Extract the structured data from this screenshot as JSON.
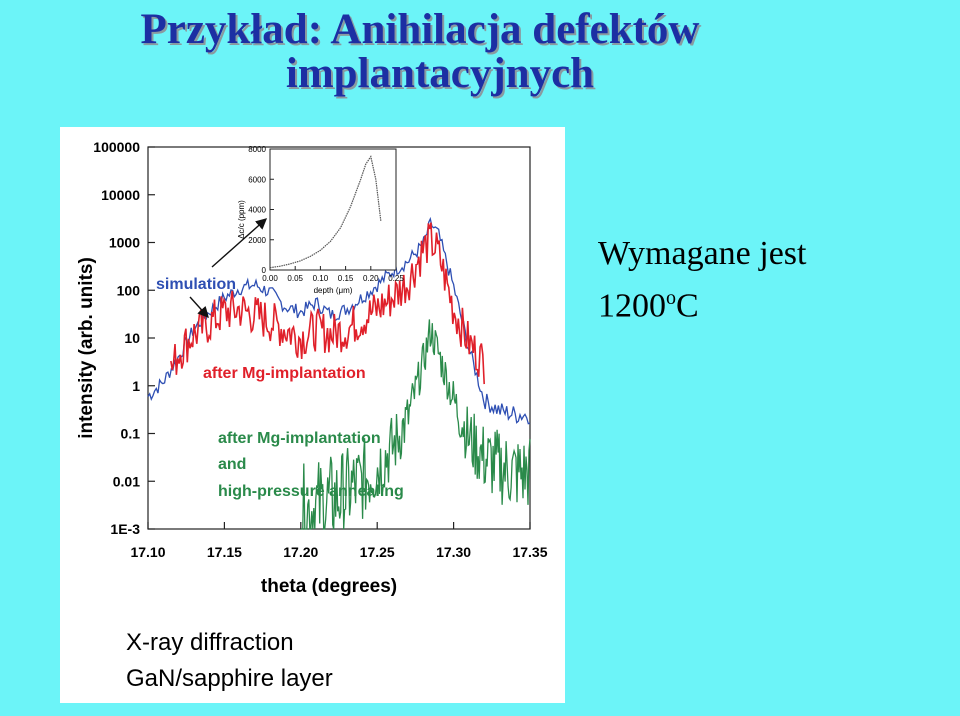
{
  "slide": {
    "title_line1": "Przykład: Anihilacja defektów",
    "title_line2": "implantacyjnych",
    "note_line1": "Wymagane jest",
    "note_value": "1200",
    "note_sup": "o",
    "note_unit": "C"
  },
  "colors": {
    "background": "#6cf4f8",
    "title": "#1c2fa3",
    "simulation": "#2e4fb3",
    "after_implantation": "#e0202a",
    "after_annealing": "#2a8a4a"
  },
  "caption": {
    "line1": "X-ray diffraction",
    "line2": "GaN/sapphire layer"
  },
  "chart_data": [
    {
      "type": "line",
      "title": "",
      "xlabel": "theta (degrees)",
      "ylabel": "intensity (arb. units)",
      "y_scale": "log",
      "xlim": [
        17.1,
        17.35
      ],
      "ylim": [
        0.001,
        100000
      ],
      "x_ticks": [
        "17.10",
        "17.15",
        "17.20",
        "17.25",
        "17.30",
        "17.35"
      ],
      "y_ticks": [
        "1E-3",
        "0.01",
        "0.1",
        "1",
        "10",
        "100",
        "1000",
        "10000",
        "100000"
      ],
      "grid": false,
      "series": [
        {
          "name": "simulation",
          "color": "#2e4fb3",
          "noise": 0.15,
          "x": [
            17.1,
            17.11,
            17.12,
            17.13,
            17.14,
            17.15,
            17.16,
            17.17,
            17.18,
            17.19,
            17.2,
            17.21,
            17.22,
            17.23,
            17.24,
            17.25,
            17.26,
            17.27,
            17.28,
            17.285,
            17.29,
            17.3,
            17.31,
            17.32,
            17.33,
            17.34,
            17.35
          ],
          "y": [
            0.6,
            1.2,
            4,
            15,
            35,
            70,
            110,
            130,
            90,
            45,
            35,
            55,
            30,
            40,
            70,
            130,
            250,
            400,
            900,
            2500,
            1500,
            120,
            6,
            0.5,
            0.3,
            0.25,
            0.25
          ]
        },
        {
          "name": "after Mg-implantation",
          "color": "#e0202a",
          "noise": 0.45,
          "x": [
            17.115,
            17.12,
            17.13,
            17.14,
            17.15,
            17.16,
            17.17,
            17.18,
            17.19,
            17.2,
            17.21,
            17.22,
            17.23,
            17.24,
            17.25,
            17.26,
            17.27,
            17.28,
            17.285,
            17.29,
            17.3,
            17.31,
            17.32
          ],
          "y": [
            2,
            5,
            12,
            20,
            35,
            40,
            30,
            22,
            15,
            10,
            15,
            12,
            15,
            25,
            40,
            70,
            150,
            700,
            1100,
            600,
            40,
            8,
            3
          ]
        },
        {
          "name": "after Mg-implantation and high-pressure annealing",
          "color": "#2a8a4a",
          "noise": 0.4,
          "x": [
            17.2,
            17.21,
            17.22,
            17.23,
            17.24,
            17.25,
            17.26,
            17.27,
            17.28,
            17.285,
            17.29,
            17.3,
            17.31,
            17.32,
            17.33,
            17.34,
            17.35
          ],
          "y": [
            0.002,
            0.003,
            0.004,
            0.006,
            0.01,
            0.02,
            0.05,
            0.2,
            3,
            15,
            5,
            0.5,
            0.08,
            0.03,
            0.02,
            0.015,
            0.015
          ]
        }
      ],
      "annotations": [
        "simulation",
        "after Mg-implantation",
        "after Mg-implantation",
        "and",
        "high-pressure annealing"
      ]
    },
    {
      "type": "line",
      "title": "",
      "xlabel": "depth (μm)",
      "ylabel": "Δc/c (ppm)",
      "xlim": [
        0.0,
        0.25
      ],
      "ylim": [
        0,
        8000
      ],
      "x_ticks": [
        "0.00",
        "0.05",
        "0.10",
        "0.15",
        "0.20",
        "0.25"
      ],
      "y_ticks": [
        "0",
        "2000",
        "4000",
        "6000",
        "8000"
      ],
      "series": [
        {
          "name": "",
          "color": "#555555",
          "x": [
            0.0,
            0.02,
            0.04,
            0.06,
            0.08,
            0.1,
            0.12,
            0.14,
            0.16,
            0.18,
            0.19,
            0.2,
            0.21,
            0.22
          ],
          "y": [
            150,
            250,
            400,
            600,
            900,
            1300,
            1900,
            2800,
            4200,
            6000,
            7000,
            7500,
            6000,
            3200
          ]
        }
      ]
    }
  ]
}
